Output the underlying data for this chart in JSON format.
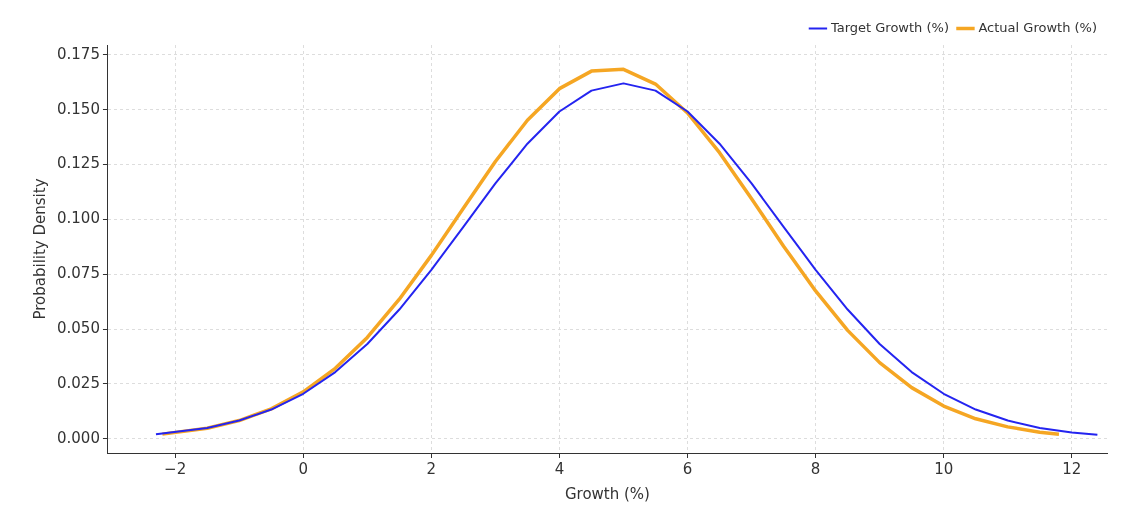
{
  "chart_data": {
    "type": "line",
    "xlabel": "Growth (%)",
    "ylabel": "Probability Density",
    "xlim": [
      -3.05,
      12.55
    ],
    "ylim": [
      -0.0065,
      0.1795
    ],
    "xticks": [
      {
        "value": -2,
        "label": "−2"
      },
      0,
      2,
      4,
      6,
      8,
      10,
      12
    ],
    "yticks": [
      {
        "value": 0,
        "label": "0.000"
      },
      {
        "value": 0.025,
        "label": "0.025"
      },
      {
        "value": 0.05,
        "label": "0.050"
      },
      {
        "value": 0.075,
        "label": "0.075"
      },
      {
        "value": 0.1,
        "label": "0.100"
      },
      {
        "value": 0.125,
        "label": "0.125"
      },
      {
        "value": 0.15,
        "label": "0.150"
      },
      {
        "value": 0.175,
        "label": "0.175"
      }
    ],
    "grid": true,
    "legend": "top right",
    "marker": "none",
    "line_style": "solid",
    "series": [
      {
        "name": "Target Growth (%)",
        "color": "#2424f0",
        "x": [
          -2.3,
          -1.5,
          -1,
          -0.5,
          0,
          0.5,
          1,
          1.5,
          2,
          2.5,
          3,
          3.5,
          4,
          4.5,
          5,
          5.5,
          6,
          6.5,
          7,
          7.5,
          8,
          8.5,
          9,
          9.5,
          10,
          10.5,
          11,
          11.5,
          12,
          12.4
        ],
        "values": [
          0.002,
          0.0049,
          0.0083,
          0.0133,
          0.0205,
          0.0304,
          0.0432,
          0.0589,
          0.077,
          0.0966,
          0.1164,
          0.1345,
          0.1492,
          0.1587,
          0.162,
          0.1587,
          0.1492,
          0.1345,
          0.1164,
          0.0966,
          0.077,
          0.0589,
          0.0432,
          0.0304,
          0.0205,
          0.0133,
          0.0083,
          0.0049,
          0.0028,
          0.0018
        ]
      },
      {
        "name": "Actual Growth (%)",
        "color": "#f5a623",
        "x": [
          -2.2,
          -1.5,
          -1,
          -0.5,
          0,
          0.5,
          1,
          1.5,
          2,
          2.5,
          3,
          3.5,
          4,
          4.5,
          5,
          5.5,
          6,
          6.5,
          7,
          7.5,
          8,
          8.5,
          9,
          9.5,
          10,
          10.5,
          11,
          11.5,
          11.8
        ],
        "values": [
          0.0021,
          0.0048,
          0.0083,
          0.0136,
          0.0214,
          0.0321,
          0.0462,
          0.0636,
          0.0836,
          0.1051,
          0.1264,
          0.1452,
          0.1596,
          0.1676,
          0.1684,
          0.1617,
          0.1485,
          0.1304,
          0.1094,
          0.0878,
          0.0674,
          0.0494,
          0.0347,
          0.0233,
          0.0149,
          0.0091,
          0.0054,
          0.003,
          0.0021
        ]
      }
    ]
  }
}
